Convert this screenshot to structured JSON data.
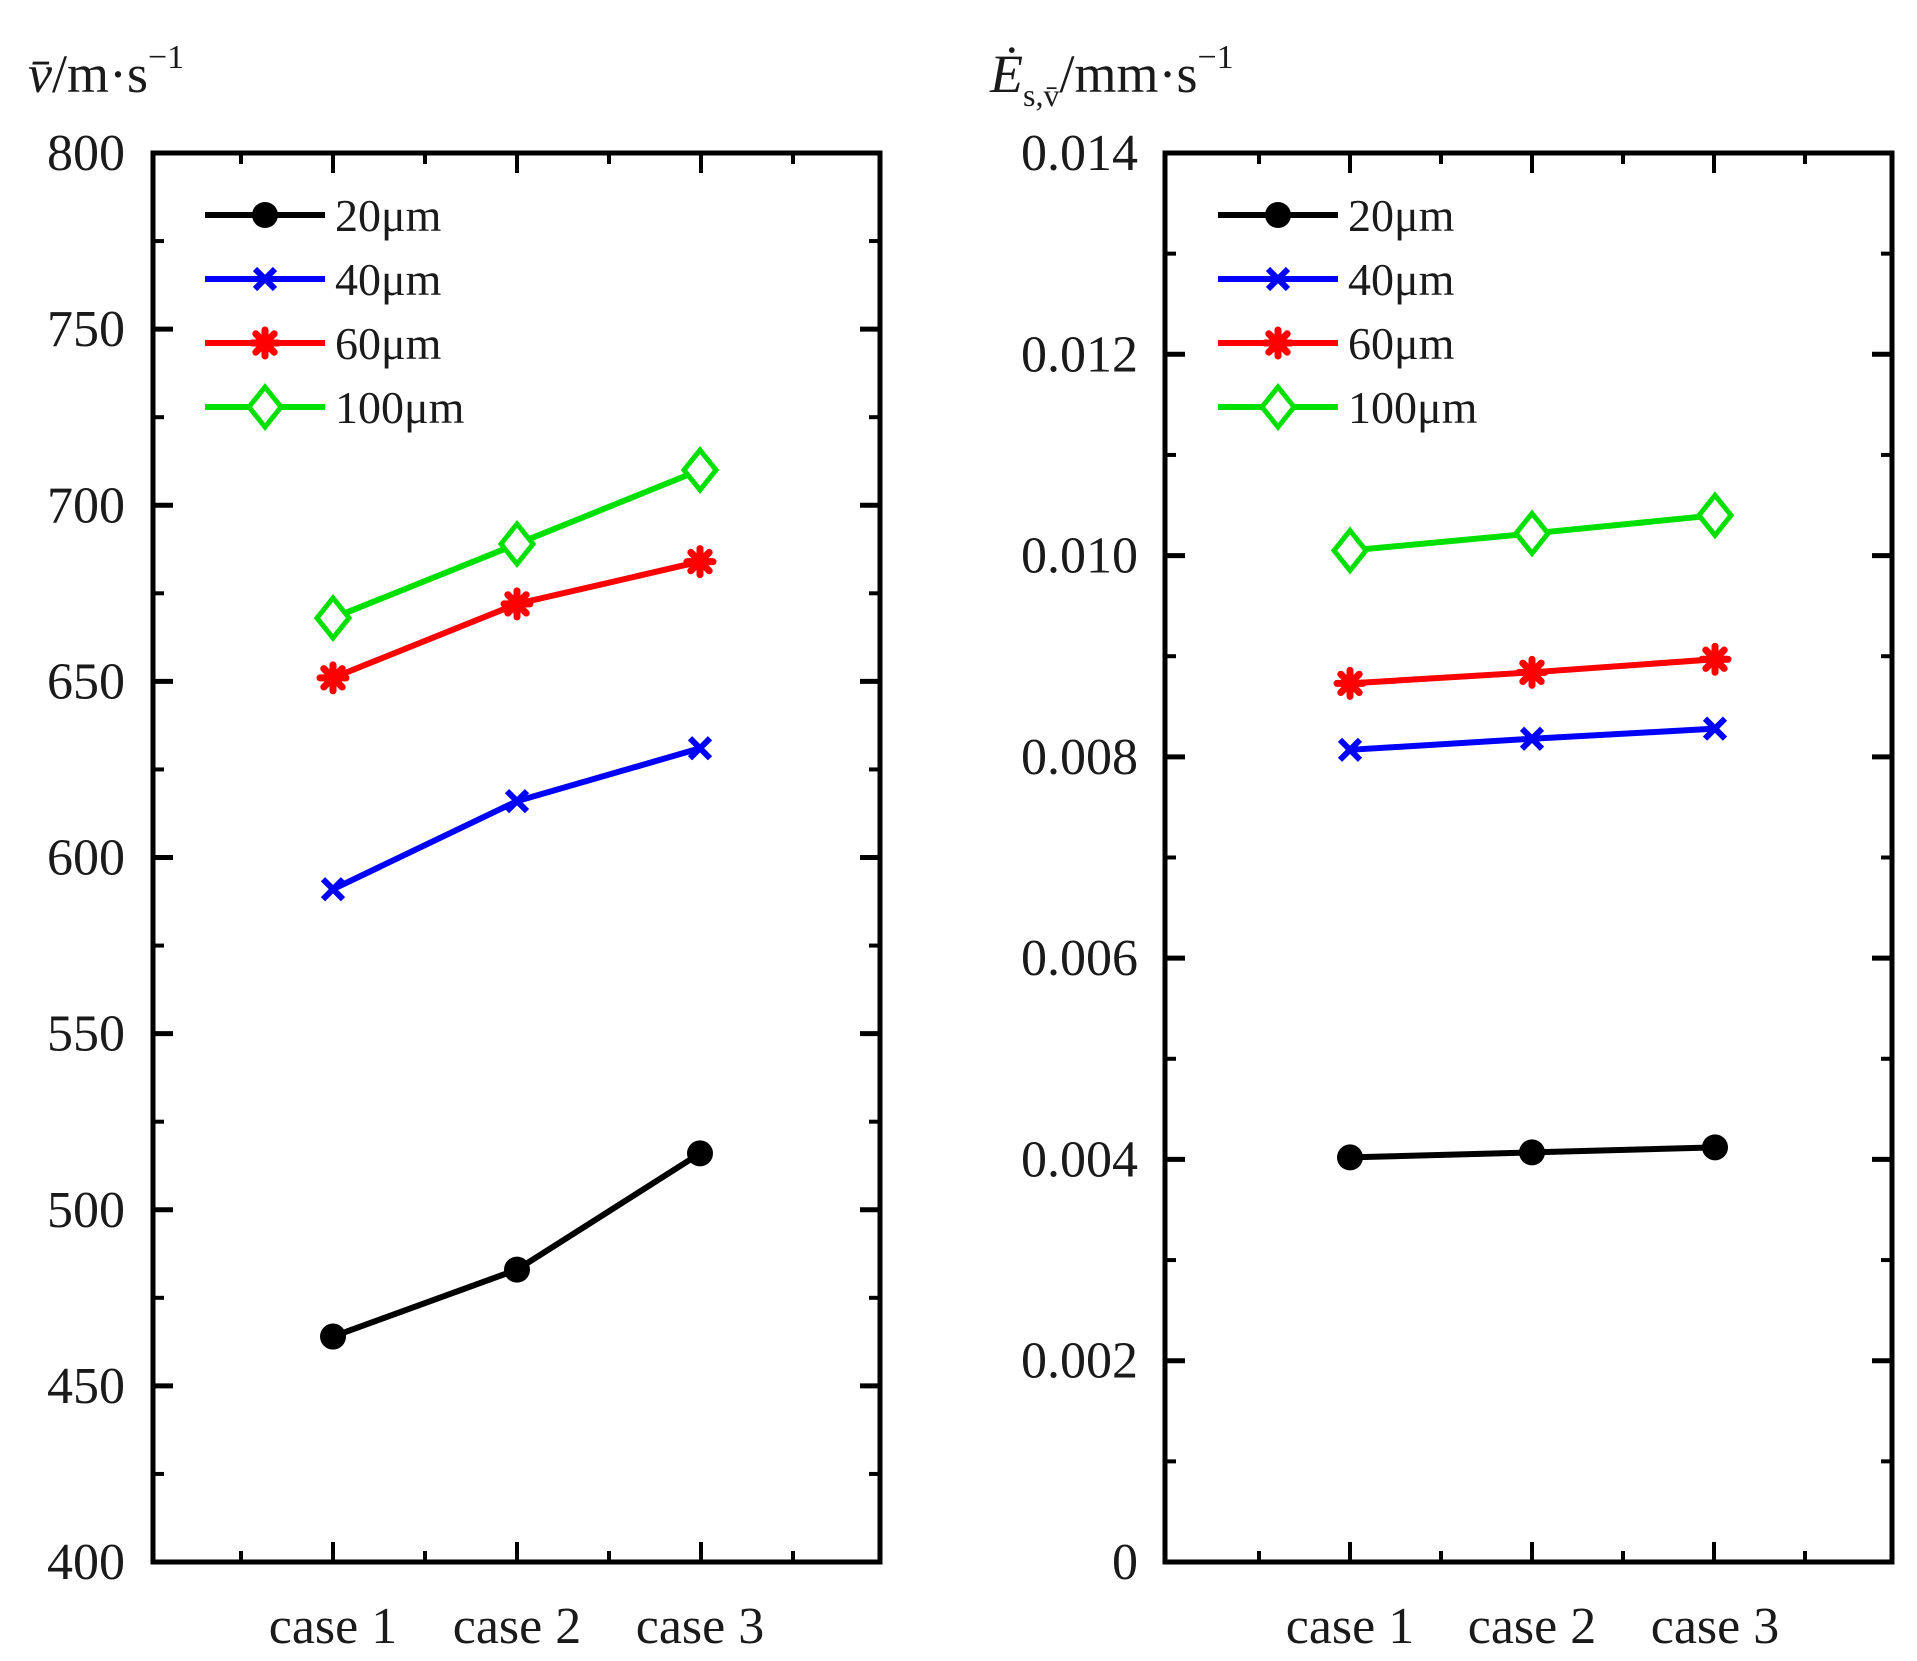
{
  "chart_data": [
    {
      "type": "line",
      "ylabel": {
        "symbol": "v̄",
        "unit": "/m·s",
        "sup": "−1"
      },
      "ylim": [
        400,
        800
      ],
      "yticks": [
        "400",
        "450",
        "500",
        "550",
        "600",
        "650",
        "700",
        "750",
        "800"
      ],
      "categories": [
        "case 1",
        "case 2",
        "case 3"
      ],
      "legend_position": "top-left",
      "series": [
        {
          "name": "20μm",
          "color": "#000000",
          "marker": "circle",
          "values": [
            464,
            483,
            516
          ]
        },
        {
          "name": "40μm",
          "color": "#0000ff",
          "marker": "x",
          "values": [
            591,
            616,
            631
          ]
        },
        {
          "name": "60μm",
          "color": "#ff0000",
          "marker": "star",
          "values": [
            651,
            672,
            684
          ]
        },
        {
          "name": "100μm",
          "color": "#00e000",
          "marker": "diamond",
          "values": [
            668,
            689,
            710
          ]
        }
      ]
    },
    {
      "type": "line",
      "ylabel": {
        "symbol": "Ė",
        "sub": "s,v̄",
        "unit": "/mm·s",
        "sup": "−1"
      },
      "ylim": [
        0,
        0.014
      ],
      "yticks": [
        "0",
        "0.002",
        "0.004",
        "0.006",
        "0.008",
        "0.010",
        "0.012",
        "0.014"
      ],
      "categories": [
        "case 1",
        "case 2",
        "case 3"
      ],
      "legend_position": "top-left",
      "series": [
        {
          "name": "20μm",
          "color": "#000000",
          "marker": "circle",
          "values": [
            0.00402,
            0.00407,
            0.00412
          ]
        },
        {
          "name": "40μm",
          "color": "#0000ff",
          "marker": "x",
          "values": [
            0.00807,
            0.00818,
            0.00828
          ]
        },
        {
          "name": "60μm",
          "color": "#ff0000",
          "marker": "star",
          "values": [
            0.00873,
            0.00884,
            0.00897
          ]
        },
        {
          "name": "100μm",
          "color": "#00e000",
          "marker": "diamond",
          "values": [
            0.01005,
            0.01022,
            0.0104
          ]
        }
      ]
    }
  ]
}
